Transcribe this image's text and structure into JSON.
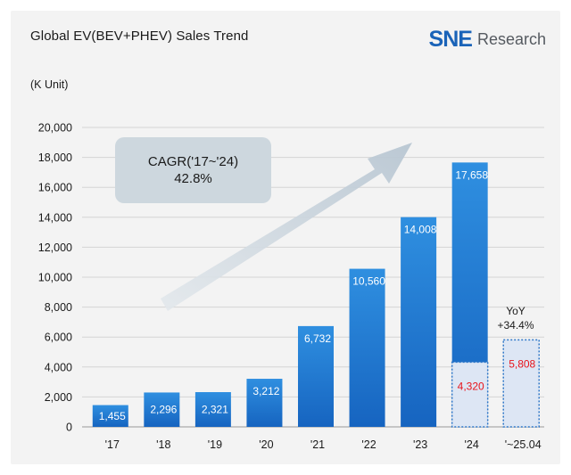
{
  "header": {
    "title": "Global EV(BEV+PHEV) Sales Trend",
    "unit": "(K Unit)"
  },
  "logo": {
    "brand": "SNE",
    "name": "Research",
    "color": "#1a63b8"
  },
  "annotation": {
    "cagr_line1": "CAGR('17~'24)",
    "cagr_line2": "42.8%",
    "yoy_line1": "YoY",
    "yoy_line2": "+34.4%"
  },
  "chart_data": {
    "type": "bar",
    "title": "Global EV(BEV+PHEV) Sales Trend",
    "ylabel": "(K Unit)",
    "ylim": [
      0,
      20000
    ],
    "yticks": [
      "0",
      "2,000",
      "4,000",
      "6,000",
      "8,000",
      "10,000",
      "12,000",
      "14,000",
      "16,000",
      "18,000",
      "20,000"
    ],
    "categories": [
      "'17",
      "'18",
      "'19",
      "'20",
      "'21",
      "'22",
      "'23",
      "'24",
      "'~25.04"
    ],
    "values": [
      1455,
      2296,
      2321,
      3212,
      6732,
      10560,
      14008,
      17658,
      null
    ],
    "value_labels": [
      "1,455",
      "2,296",
      "2,321",
      "3,212",
      "6,732",
      "10,560",
      "14,008",
      "17,658",
      ""
    ],
    "ytd_comparison": {
      "categories": [
        "'24",
        "'~25.04"
      ],
      "values": [
        4320,
        5808
      ],
      "labels": [
        "4,320",
        "5,808"
      ]
    },
    "grid": true,
    "colors": {
      "bar_top": "#2f8fe0",
      "bar_bottom": "#1664c0",
      "ytd_fill": "#dde6f4",
      "ytd_border": "#2f77c8",
      "ytd_label": "#e8141b"
    }
  }
}
